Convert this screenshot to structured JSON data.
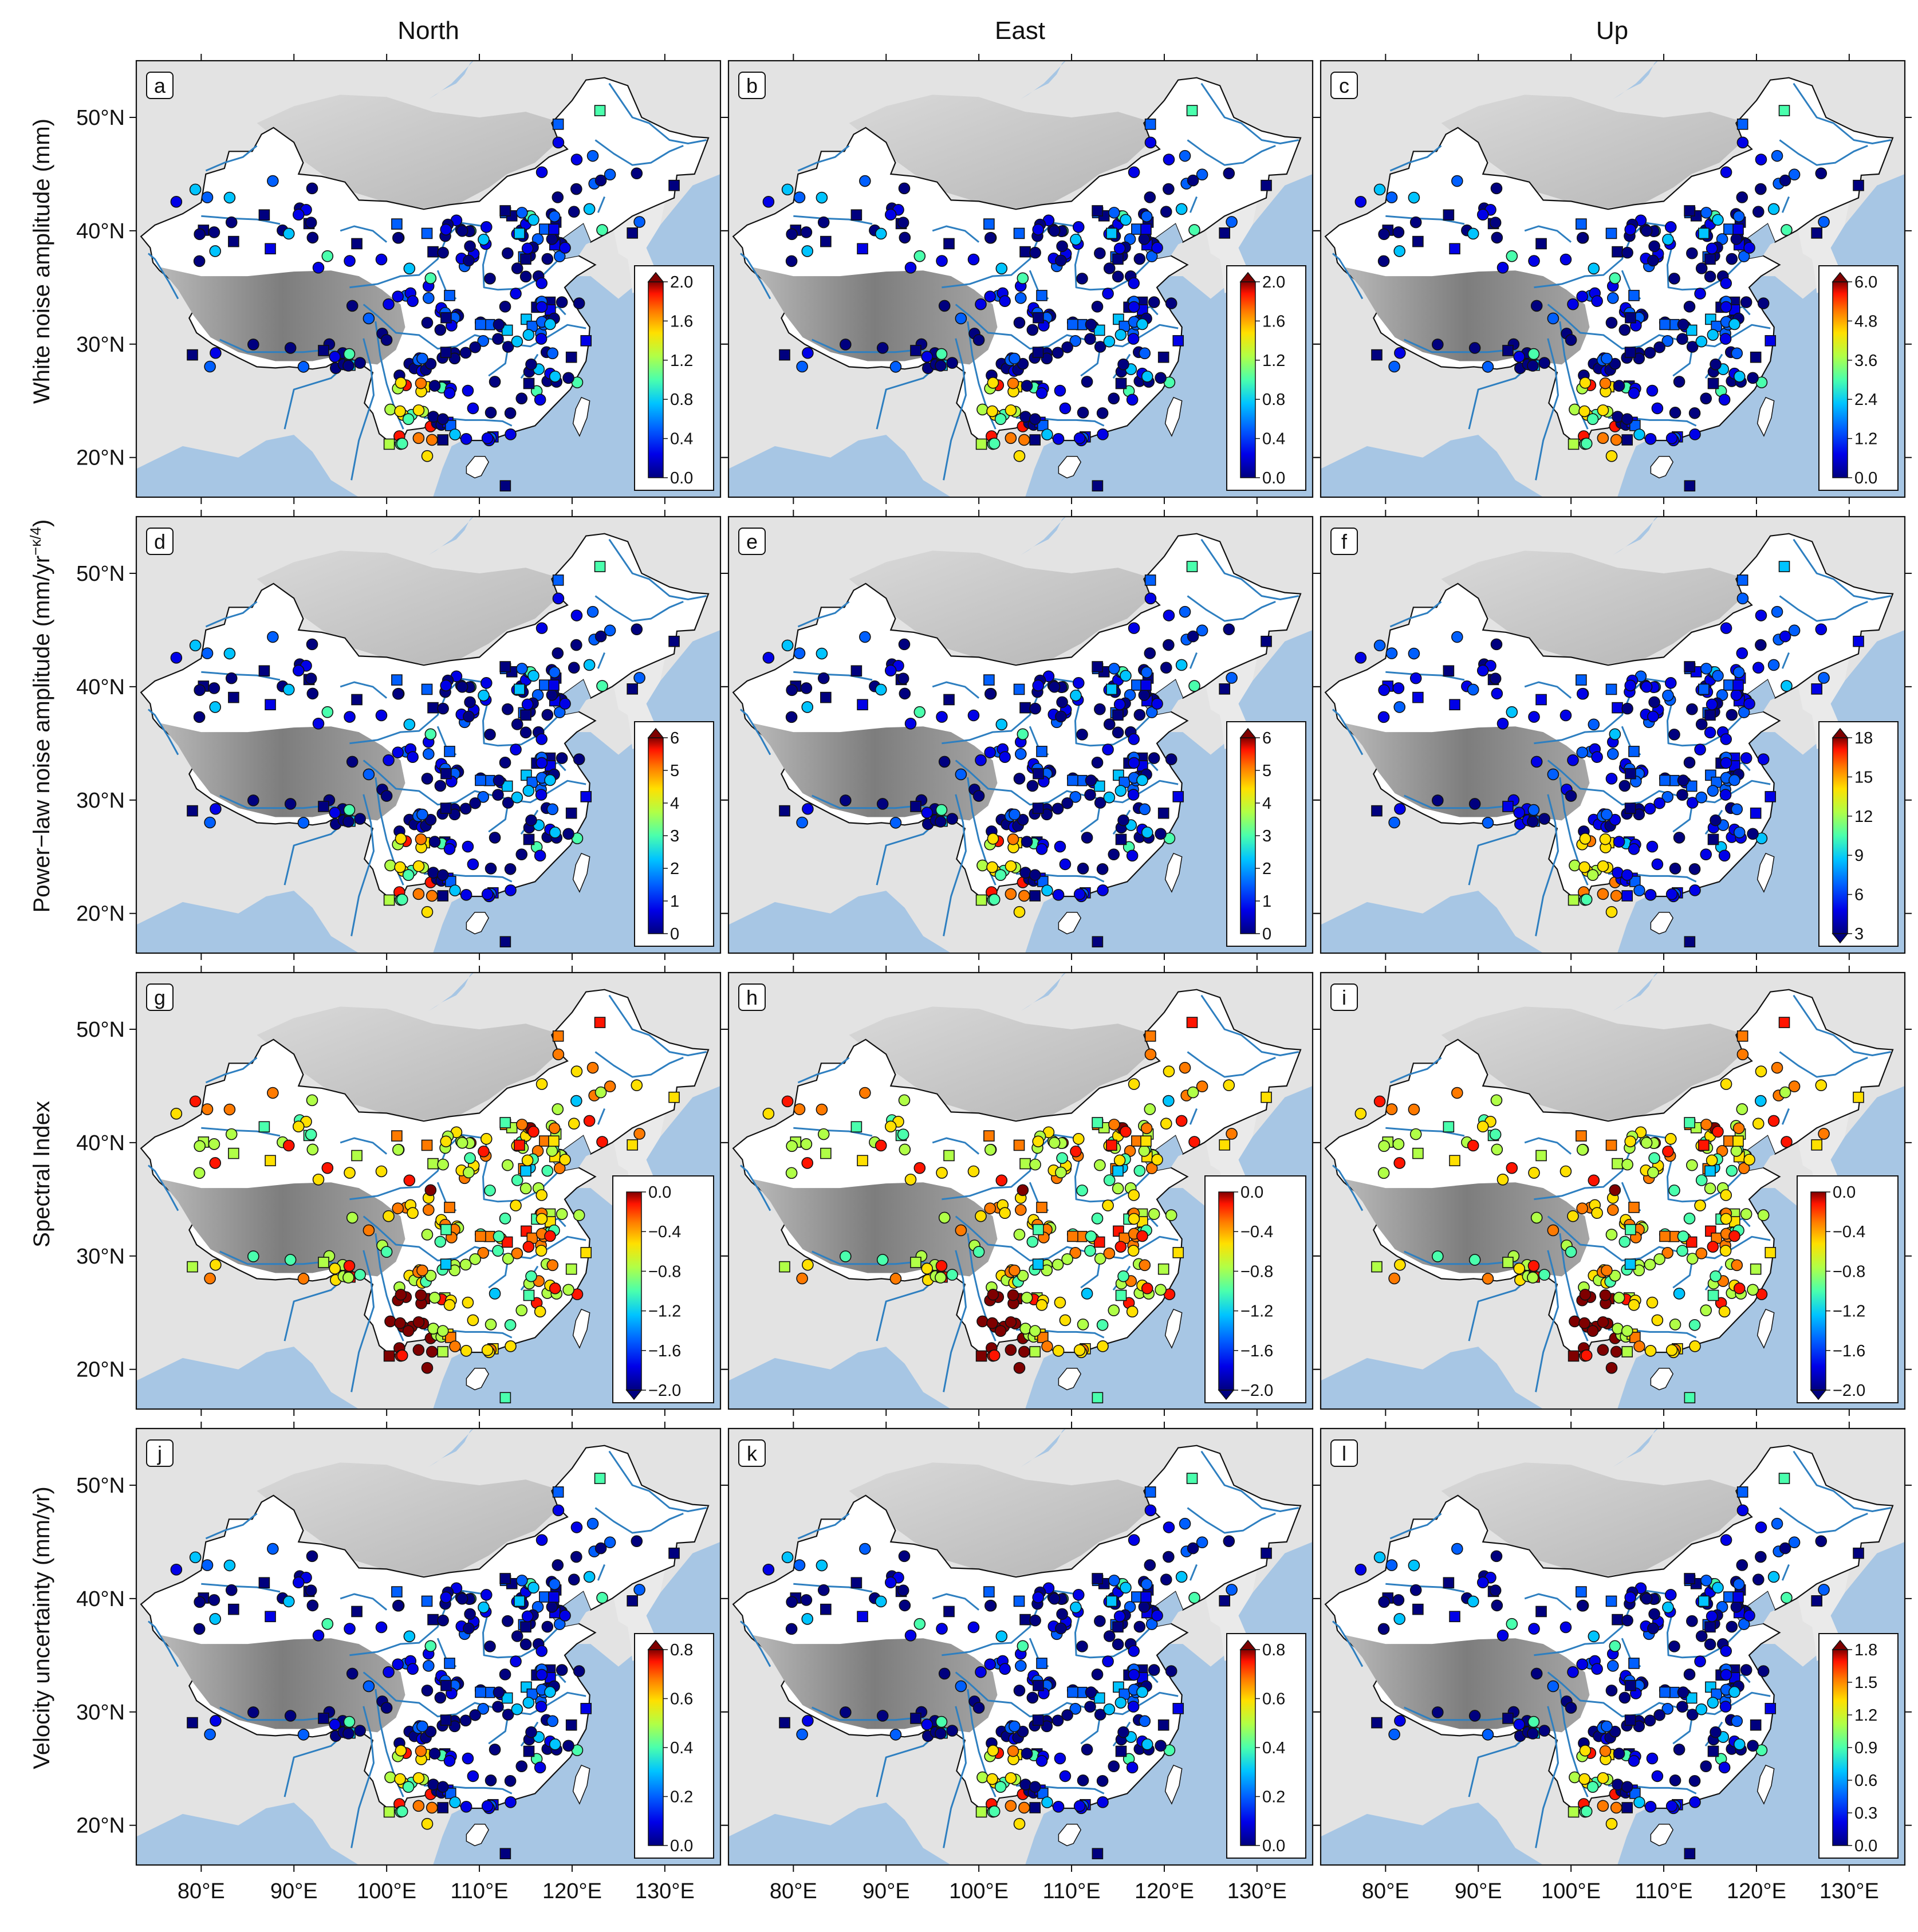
{
  "columns": [
    "North",
    "East",
    "Up"
  ],
  "rows": [
    {
      "label": "White noise amplitude (mm)",
      "label_html": ""
    },
    {
      "label": "Power−law noise amplitude (mm/yr",
      "label_sup": "−κ/4",
      "label_end": ")"
    },
    {
      "label": "Spectral Index"
    },
    {
      "label": "Velocity uncertainty (mm/yr)"
    }
  ],
  "axes": {
    "lon_ticks": [
      "80°E",
      "90°E",
      "100°E",
      "110°E",
      "120°E",
      "130°E"
    ],
    "lat_ticks": [
      "50°N",
      "40°N",
      "30°N",
      "20°N"
    ],
    "lon_values": [
      80,
      90,
      100,
      110,
      120,
      130
    ],
    "lat_values": [
      50,
      40,
      30,
      20
    ],
    "lon_range": [
      73,
      136
    ],
    "lat_range": [
      16.5,
      55
    ]
  },
  "panels": [
    {
      "letter": "a",
      "row": 0,
      "col": 0,
      "cbar": {
        "labels": [
          "2.0",
          "1.6",
          "1.2",
          "0.8",
          "0.4",
          "0.0"
        ],
        "min": 0.0,
        "max": 2.0,
        "arrows": "top"
      }
    },
    {
      "letter": "b",
      "row": 0,
      "col": 1,
      "cbar": {
        "labels": [
          "2.0",
          "1.6",
          "1.2",
          "0.8",
          "0.4",
          "0.0"
        ],
        "min": 0.0,
        "max": 2.0,
        "arrows": "top"
      }
    },
    {
      "letter": "c",
      "row": 0,
      "col": 2,
      "cbar": {
        "labels": [
          "6.0",
          "4.8",
          "3.6",
          "2.4",
          "1.2",
          "0.0"
        ],
        "min": 0.0,
        "max": 6.0,
        "arrows": "top"
      }
    },
    {
      "letter": "d",
      "row": 1,
      "col": 0,
      "cbar": {
        "labels": [
          "6",
          "5",
          "4",
          "3",
          "2",
          "1",
          "0"
        ],
        "min": 0,
        "max": 6,
        "arrows": "top"
      }
    },
    {
      "letter": "e",
      "row": 1,
      "col": 1,
      "cbar": {
        "labels": [
          "6",
          "5",
          "4",
          "3",
          "2",
          "1",
          "0"
        ],
        "min": 0,
        "max": 6,
        "arrows": "top"
      }
    },
    {
      "letter": "f",
      "row": 1,
      "col": 2,
      "cbar": {
        "labels": [
          "18",
          "15",
          "12",
          "9",
          "6",
          "3"
        ],
        "min": 3,
        "max": 18,
        "arrows": "both"
      }
    },
    {
      "letter": "g",
      "row": 2,
      "col": 0,
      "cbar": {
        "labels": [
          "0.0",
          "−0.4",
          "−0.8",
          "−1.2",
          "−1.6",
          "−2.0"
        ],
        "min": -2.0,
        "max": 0.0,
        "arrows": "bottom"
      }
    },
    {
      "letter": "h",
      "row": 2,
      "col": 1,
      "cbar": {
        "labels": [
          "0.0",
          "−0.4",
          "−0.8",
          "−1.2",
          "−1.6",
          "−2.0"
        ],
        "min": -2.0,
        "max": 0.0,
        "arrows": "bottom"
      }
    },
    {
      "letter": "i",
      "row": 2,
      "col": 2,
      "cbar": {
        "labels": [
          "0.0",
          "−0.4",
          "−0.8",
          "−1.2",
          "−1.6",
          "−2.0"
        ],
        "min": -2.0,
        "max": 0.0,
        "arrows": "bottom"
      }
    },
    {
      "letter": "j",
      "row": 3,
      "col": 0,
      "cbar": {
        "labels": [
          "0.8",
          "0.6",
          "0.4",
          "0.2",
          "0.0"
        ],
        "min": 0.0,
        "max": 0.8,
        "arrows": "top"
      }
    },
    {
      "letter": "k",
      "row": 3,
      "col": 1,
      "cbar": {
        "labels": [
          "0.8",
          "0.6",
          "0.4",
          "0.2",
          "0.0"
        ],
        "min": 0.0,
        "max": 0.8,
        "arrows": "top"
      }
    },
    {
      "letter": "l",
      "row": 3,
      "col": 2,
      "cbar": {
        "labels": [
          "1.8",
          "1.5",
          "1.2",
          "0.9",
          "0.6",
          "0.3",
          "0.0"
        ],
        "min": 0.0,
        "max": 1.8,
        "arrows": "top"
      }
    }
  ],
  "colormap": [
    "#00007f",
    "#0000e8",
    "#005fff",
    "#00c4ff",
    "#4affad",
    "#b0ff47",
    "#ffe000",
    "#ff7a00",
    "#ff1400",
    "#7f0000"
  ],
  "colors": {
    "sea": "#a7c6e4",
    "land": "#ffffff",
    "plateau": "#8e8e8e",
    "river": "#2e7fc0",
    "border": "#111111"
  },
  "markers": [
    "circle",
    "square"
  ]
}
